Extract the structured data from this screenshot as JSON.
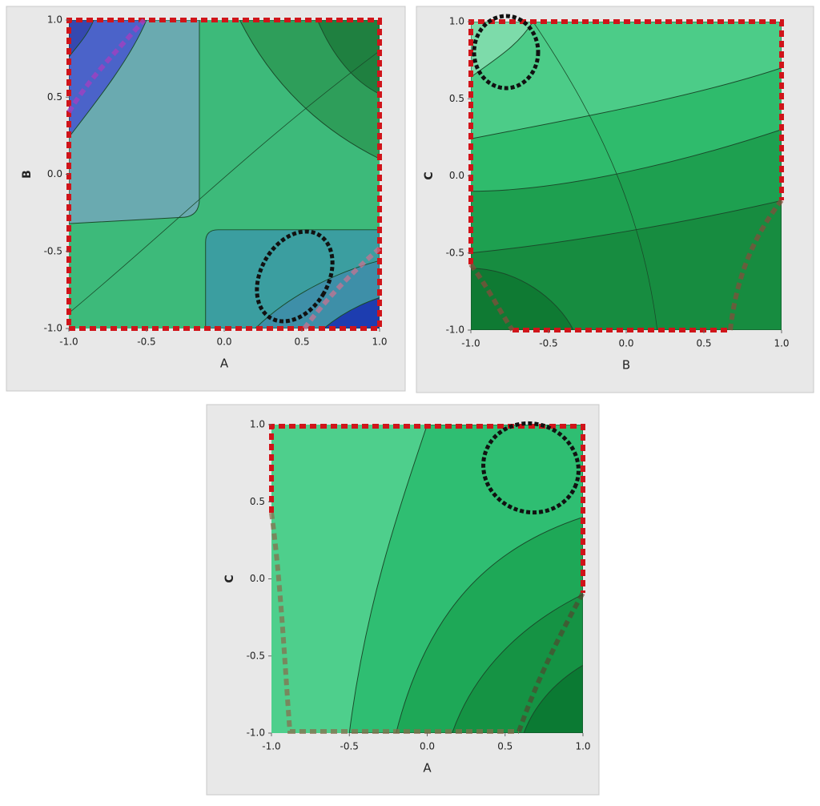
{
  "chart_data": [
    {
      "type": "contour",
      "xlabel": "A",
      "ylabel": "B",
      "xlim": [
        -1,
        1
      ],
      "ylim": [
        -1,
        1
      ],
      "xticks": [
        {
          "value": -1,
          "label": "-1.0"
        },
        -0.5,
        {
          "value": 0,
          "label": "0.0"
        },
        0.5,
        {
          "value": 1,
          "label": "1.0"
        }
      ],
      "yticks": [
        {
          "value": -1,
          "label": "-1.0"
        },
        -0.5,
        {
          "value": 0,
          "label": "0.0"
        },
        0.5,
        {
          "value": 1,
          "label": "1.0"
        }
      ]
    },
    {
      "type": "contour",
      "xlabel": "B",
      "ylabel": "C",
      "xlim": [
        -1,
        1
      ],
      "ylim": [
        -1,
        1
      ],
      "xticks": [
        {
          "value": -1,
          "label": "-1.0"
        },
        -0.5,
        {
          "value": 0,
          "label": "0.0"
        },
        0.5,
        {
          "value": 1,
          "label": "1.0"
        }
      ],
      "yticks": [
        {
          "value": -1,
          "label": "-1.0"
        },
        -0.5,
        {
          "value": 0,
          "label": "0.0"
        },
        0.5,
        {
          "value": 1,
          "label": "1.0"
        }
      ]
    },
    {
      "type": "contour",
      "xlabel": "A",
      "ylabel": "C",
      "xlim": [
        -1,
        1
      ],
      "ylim": [
        -1,
        1
      ],
      "xticks": [
        {
          "value": -1,
          "label": "-1.0"
        },
        -0.5,
        {
          "value": 0,
          "label": "0.0"
        },
        0.5,
        {
          "value": 1,
          "label": "1.0"
        }
      ],
      "yticks": [
        {
          "value": -1,
          "label": "-1.0"
        },
        -0.5,
        {
          "value": 0,
          "label": "0.0"
        },
        0.5,
        {
          "value": 1,
          "label": "1.0"
        }
      ]
    }
  ]
}
